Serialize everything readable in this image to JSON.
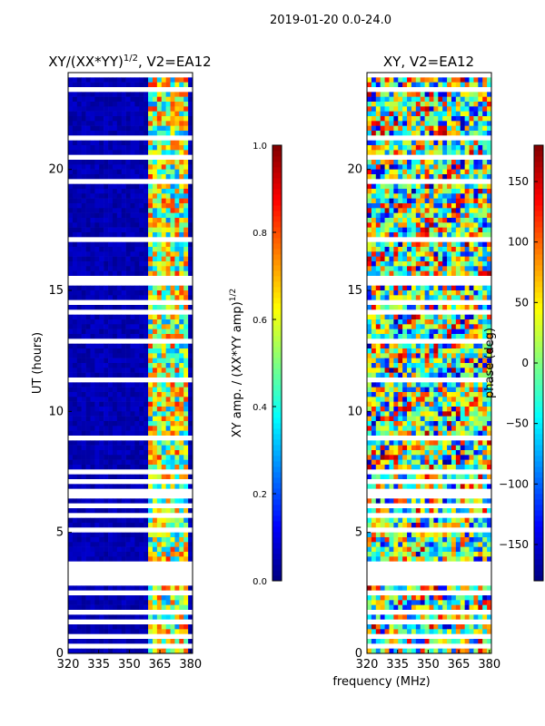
{
  "figure_title": "2019-01-20 0.0-24.0",
  "shared_xlabel": "frequency (MHz)",
  "colors": {
    "axis": "#000000",
    "nodata": "#00007f",
    "gap": "#ffffff"
  },
  "chart_data": [
    {
      "type": "heatmap",
      "title": "XY/(XX*YY)",
      "title_power": "1/2",
      "title_suffix": ", V2=EA12",
      "xlabel": "",
      "ylabel": "UT (hours)",
      "xlim": [
        320,
        381
      ],
      "ylim": [
        0,
        24
      ],
      "xticks": [
        320,
        335,
        350,
        365,
        380
      ],
      "yticks": [
        0,
        5,
        10,
        15,
        20
      ],
      "active_freq_range_mhz": [
        359,
        378
      ],
      "colorbar": {
        "label": "XY amp. / (XX*YY amp)",
        "label_power": "1/2",
        "range": [
          0.0,
          1.0
        ],
        "ticks": [
          "0.0",
          "0.2",
          "0.4",
          "0.6",
          "0.8",
          "1.0"
        ]
      }
    },
    {
      "type": "heatmap",
      "title": "XY, V2=EA12",
      "xlabel": "",
      "ylabel": "",
      "xlim": [
        320,
        381
      ],
      "ylim": [
        0,
        24
      ],
      "xticks": [
        320,
        335,
        350,
        365,
        380
      ],
      "yticks": [
        0,
        5,
        10,
        15,
        20
      ],
      "colorbar": {
        "label": "phase (deg)",
        "range": [
          -180,
          180
        ],
        "ticks": [
          "−150",
          "−100",
          "−50",
          "0",
          "50",
          "100",
          "150"
        ]
      }
    }
  ]
}
